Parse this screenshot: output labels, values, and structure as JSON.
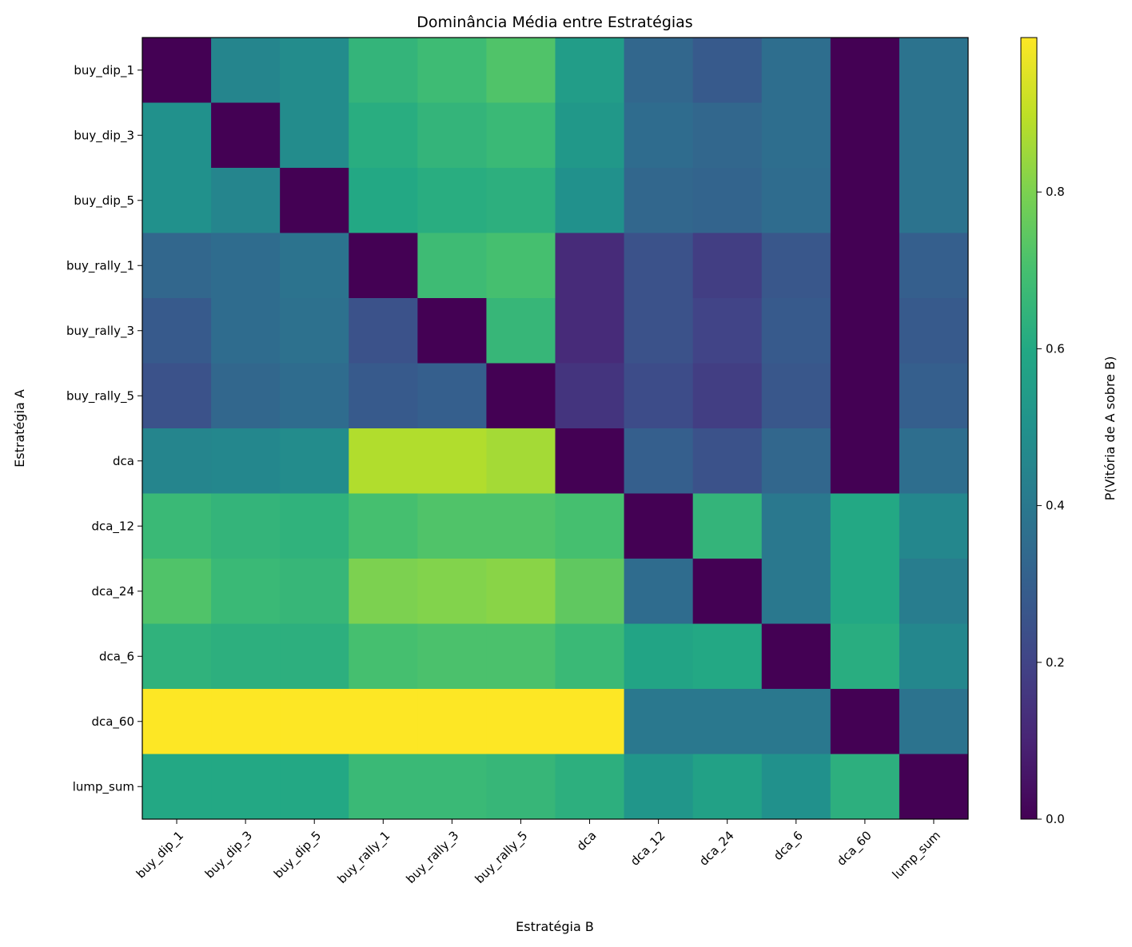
{
  "chart_data": {
    "type": "heatmap",
    "title": "Dominância Média entre Estratégias",
    "xlabel": "Estratégia B",
    "ylabel": "Estratégia A",
    "colorbar_label": "P(Vitória de A sobre B)",
    "colormap": "viridis",
    "color_range": [
      0.0,
      0.997
    ],
    "colorbar_ticks": [
      0.0,
      0.2,
      0.4,
      0.6,
      0.8
    ],
    "x_categories": [
      "buy_dip_1",
      "buy_dip_3",
      "buy_dip_5",
      "buy_rally_1",
      "buy_rally_3",
      "buy_rally_5",
      "dca",
      "dca_12",
      "dca_24",
      "dca_6",
      "dca_60",
      "lump_sum"
    ],
    "y_categories": [
      "buy_dip_1",
      "buy_dip_3",
      "buy_dip_5",
      "buy_rally_1",
      "buy_rally_3",
      "buy_rally_5",
      "dca",
      "dca_12",
      "dca_24",
      "dca_6",
      "dca_60",
      "lump_sum"
    ],
    "values": [
      [
        0.0,
        0.45,
        0.48,
        0.65,
        0.68,
        0.72,
        0.55,
        0.33,
        0.28,
        0.36,
        0.0,
        0.38
      ],
      [
        0.5,
        0.0,
        0.48,
        0.62,
        0.65,
        0.67,
        0.53,
        0.35,
        0.33,
        0.36,
        0.0,
        0.38
      ],
      [
        0.5,
        0.45,
        0.0,
        0.6,
        0.62,
        0.63,
        0.5,
        0.33,
        0.32,
        0.35,
        0.0,
        0.38
      ],
      [
        0.33,
        0.35,
        0.38,
        0.0,
        0.68,
        0.7,
        0.12,
        0.25,
        0.18,
        0.27,
        0.0,
        0.3
      ],
      [
        0.28,
        0.35,
        0.37,
        0.25,
        0.0,
        0.66,
        0.12,
        0.25,
        0.2,
        0.28,
        0.0,
        0.28
      ],
      [
        0.25,
        0.33,
        0.35,
        0.28,
        0.3,
        0.0,
        0.15,
        0.23,
        0.18,
        0.27,
        0.0,
        0.3
      ],
      [
        0.45,
        0.46,
        0.48,
        0.88,
        0.88,
        0.86,
        0.0,
        0.3,
        0.25,
        0.33,
        0.0,
        0.36
      ],
      [
        0.67,
        0.65,
        0.64,
        0.7,
        0.72,
        0.72,
        0.7,
        0.0,
        0.65,
        0.4,
        0.6,
        0.46
      ],
      [
        0.72,
        0.67,
        0.66,
        0.8,
        0.81,
        0.82,
        0.75,
        0.35,
        0.0,
        0.4,
        0.6,
        0.42
      ],
      [
        0.64,
        0.63,
        0.63,
        0.7,
        0.71,
        0.71,
        0.67,
        0.58,
        0.6,
        0.0,
        0.62,
        0.46
      ],
      [
        0.997,
        0.997,
        0.997,
        0.997,
        0.997,
        0.997,
        0.997,
        0.4,
        0.4,
        0.4,
        0.0,
        0.38
      ],
      [
        0.6,
        0.6,
        0.6,
        0.67,
        0.67,
        0.66,
        0.63,
        0.52,
        0.57,
        0.5,
        0.63,
        0.0
      ]
    ]
  }
}
